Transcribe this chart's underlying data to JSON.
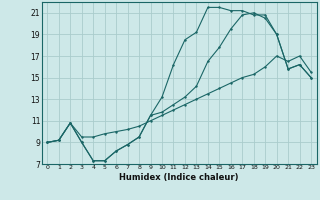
{
  "xlabel": "Humidex (Indice chaleur)",
  "background_color": "#cde8e8",
  "grid_color": "#aacccc",
  "line_color": "#1a6666",
  "xlim": [
    -0.5,
    23.5
  ],
  "ylim": [
    7,
    22
  ],
  "xticks": [
    0,
    1,
    2,
    3,
    4,
    5,
    6,
    7,
    8,
    9,
    10,
    11,
    12,
    13,
    14,
    15,
    16,
    17,
    18,
    19,
    20,
    21,
    22,
    23
  ],
  "yticks": [
    7,
    9,
    11,
    13,
    15,
    17,
    19,
    21
  ],
  "line1_x": [
    0,
    1,
    2,
    3,
    4,
    5,
    6,
    7,
    8,
    9,
    10,
    11,
    12,
    13,
    14,
    15,
    16,
    17,
    18,
    19,
    20,
    21,
    22,
    23
  ],
  "line1_y": [
    9.0,
    9.2,
    10.8,
    9.0,
    7.3,
    7.3,
    8.2,
    8.8,
    9.5,
    11.5,
    11.8,
    12.5,
    13.2,
    14.2,
    16.5,
    17.8,
    19.5,
    20.8,
    21.0,
    20.5,
    19.0,
    15.8,
    16.2,
    15.0
  ],
  "line2_x": [
    0,
    1,
    2,
    3,
    4,
    5,
    6,
    7,
    8,
    9,
    10,
    11,
    12,
    13,
    14,
    15,
    16,
    17,
    18,
    19,
    20,
    21,
    22,
    23
  ],
  "line2_y": [
    9.0,
    9.2,
    10.8,
    9.0,
    7.3,
    7.3,
    8.2,
    8.8,
    9.5,
    11.5,
    13.2,
    16.2,
    18.5,
    19.2,
    21.5,
    21.5,
    21.2,
    21.2,
    20.8,
    20.8,
    19.0,
    15.8,
    16.2,
    15.0
  ],
  "line3_x": [
    0,
    1,
    2,
    3,
    4,
    5,
    6,
    7,
    8,
    9,
    10,
    11,
    12,
    13,
    14,
    15,
    16,
    17,
    18,
    19,
    20,
    21,
    22,
    23
  ],
  "line3_y": [
    9.0,
    9.2,
    10.8,
    9.5,
    9.5,
    9.8,
    10.0,
    10.2,
    10.5,
    11.0,
    11.5,
    12.0,
    12.5,
    13.0,
    13.5,
    14.0,
    14.5,
    15.0,
    15.3,
    16.0,
    17.0,
    16.5,
    17.0,
    15.5
  ]
}
